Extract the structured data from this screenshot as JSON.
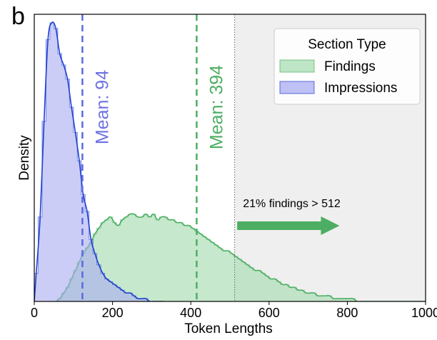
{
  "panel_label": "b",
  "chart_data": {
    "type": "histogram",
    "xlabel": "Token Lengths",
    "ylabel": "Density",
    "xlim": [
      0,
      1000
    ],
    "xticks": [
      0,
      200,
      400,
      600,
      800,
      1000
    ],
    "ylim": [
      0,
      0.0102
    ],
    "bin_width": 10,
    "shaded_region_start": 512,
    "legend": {
      "title": "Section Type",
      "location": "top-right"
    },
    "series": [
      {
        "name": "Findings",
        "color": "#4cae62",
        "fill": "#a8dcb2",
        "mean_label": "Mean: 394",
        "mean_x": 415,
        "bins_start": 50,
        "values": [
          0.0,
          0.0001,
          0.0003,
          0.0005,
          0.0008,
          0.0011,
          0.0014,
          0.0017,
          0.0019,
          0.0021,
          0.0024,
          0.0026,
          0.0028,
          0.0029,
          0.003,
          0.0028,
          0.0027,
          0.0029,
          0.003,
          0.0031,
          0.0031,
          0.003,
          0.003,
          0.0031,
          0.003,
          0.0031,
          0.0029,
          0.003,
          0.003,
          0.0029,
          0.0029,
          0.0028,
          0.0028,
          0.0027,
          0.0027,
          0.0026,
          0.0025,
          0.0024,
          0.0023,
          0.0022,
          0.0021,
          0.002,
          0.0019,
          0.0018,
          0.0018,
          0.0017,
          0.0016,
          0.0015,
          0.0014,
          0.0013,
          0.0012,
          0.0011,
          0.0011,
          0.001,
          0.0009,
          0.0008,
          0.0008,
          0.0007,
          0.0006,
          0.0006,
          0.0005,
          0.0005,
          0.0004,
          0.0004,
          0.0003,
          0.0003,
          0.0003,
          0.0002,
          0.0002,
          0.0002,
          0.0002,
          0.0001,
          0.0001,
          0.0001,
          0.0001,
          0.0001,
          0.0001,
          0.0,
          0.0,
          0.0,
          0.0,
          0.0,
          0.0,
          0.0,
          0.0,
          0.0,
          0.0,
          0.0,
          0.0,
          0.0,
          0.0,
          0.0,
          0.0,
          0.0,
          0.0
        ]
      },
      {
        "name": "Impressions",
        "color": "#1f3fd0",
        "fill": "#a9abf0",
        "mean_label": "Mean: 94",
        "mean_x": 123,
        "bins_start": 0,
        "values": [
          0.001,
          0.003,
          0.0064,
          0.0093,
          0.0099,
          0.0097,
          0.0088,
          0.0084,
          0.0079,
          0.0069,
          0.006,
          0.005,
          0.0038,
          0.0032,
          0.0022,
          0.0017,
          0.0013,
          0.001,
          0.0008,
          0.0007,
          0.0006,
          0.0005,
          0.0004,
          0.0003,
          0.0003,
          0.0002,
          0.0001,
          0.0001,
          0.0001,
          0.0,
          0.0,
          0.0
        ]
      }
    ],
    "annotation": {
      "text": "21% findings > 512",
      "arrow_from": 515,
      "arrow_to": 780
    }
  }
}
